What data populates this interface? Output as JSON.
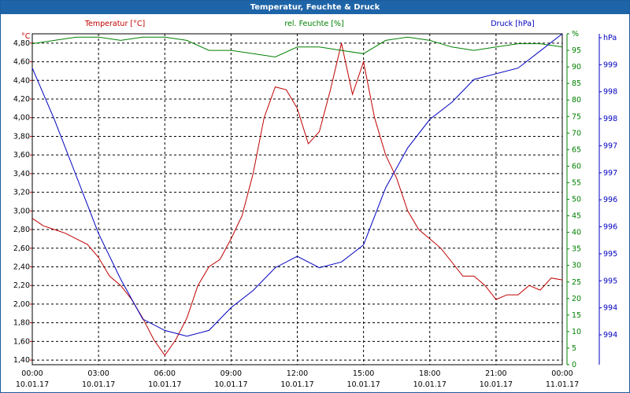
{
  "window_title": "Temperatur, Feuchte & Druck",
  "colors": {
    "temperature": "#c00000",
    "humidity": "#008000",
    "pressure": "#0000c0",
    "grid": "#000000",
    "titlebar": "#1e64a8"
  },
  "chart_data": {
    "type": "line",
    "title": "Temperatur, Feuchte & Druck",
    "grid": true,
    "x_tick_labels": [
      {
        "time": "00:00",
        "date": "10.01.17"
      },
      {
        "time": "03:00",
        "date": "10.01.17"
      },
      {
        "time": "06:00",
        "date": "10.01.17"
      },
      {
        "time": "09:00",
        "date": "10.01.17"
      },
      {
        "time": "12:00",
        "date": "10.01.17"
      },
      {
        "time": "15:00",
        "date": "10.01.17"
      },
      {
        "time": "18:00",
        "date": "10.01.17"
      },
      {
        "time": "21:00",
        "date": "10.01.17"
      },
      {
        "time": "00:00",
        "date": "11.01.17"
      }
    ],
    "xlim": [
      "10.01.17 00:00",
      "11.01.17 00:00"
    ],
    "axes": {
      "left": {
        "label": "Temperatur [°C]",
        "unit": "°C",
        "ylim": [
          1.35,
          4.9
        ],
        "ticks": [
          "1,40",
          "1,60",
          "1,80",
          "2,00",
          "2,20",
          "2,40",
          "2,60",
          "2,80",
          "3,00",
          "3,20",
          "3,40",
          "3,60",
          "3,80",
          "4,00",
          "4,20",
          "4,40",
          "4,60",
          "4,80"
        ]
      },
      "humidity": {
        "label": "rel. Feuchte [%]",
        "unit": "%",
        "ylim": [
          0,
          100
        ],
        "ticks": [
          "0",
          "5",
          "10",
          "15",
          "20",
          "25",
          "30",
          "35",
          "40",
          "45",
          "50",
          "55",
          "60",
          "65",
          "70",
          "75",
          "80",
          "85",
          "90",
          "95",
          "%"
        ]
      },
      "pressure": {
        "label": "Druck [hPa]",
        "unit": "hPa",
        "ylim": [
          993.5,
          999.3
        ],
        "ticks": [
          "994",
          "994",
          "995",
          "995",
          "996",
          "996",
          "997",
          "997",
          "998",
          "998",
          "999",
          "hPa"
        ]
      }
    },
    "series": [
      {
        "name": "Temperatur [°C]",
        "axis": "left",
        "x": [
          "10.01.17 00:00",
          "10.01.17 00:30",
          "10.01.17 01:00",
          "10.01.17 01:30",
          "10.01.17 02:00",
          "10.01.17 02:30",
          "10.01.17 03:00",
          "10.01.17 03:30",
          "10.01.17 04:00",
          "10.01.17 04:30",
          "10.01.17 05:00",
          "10.01.17 05:30",
          "10.01.17 06:00",
          "10.01.17 06:30",
          "10.01.17 07:00",
          "10.01.17 07:30",
          "10.01.17 08:00",
          "10.01.17 08:30",
          "10.01.17 09:00",
          "10.01.17 09:30",
          "10.01.17 10:00",
          "10.01.17 10:30",
          "10.01.17 11:00",
          "10.01.17 11:30",
          "10.01.17 12:00",
          "10.01.17 12:30",
          "10.01.17 13:00",
          "10.01.17 13:30",
          "10.01.17 14:00",
          "10.01.17 14:30",
          "10.01.17 15:00",
          "10.01.17 15:30",
          "10.01.17 16:00",
          "10.01.17 16:30",
          "10.01.17 17:00",
          "10.01.17 17:30",
          "10.01.17 18:00",
          "10.01.17 18:30",
          "10.01.17 19:00",
          "10.01.17 19:30",
          "10.01.17 20:00",
          "10.01.17 20:30",
          "10.01.17 21:00",
          "10.01.17 21:30",
          "10.01.17 22:00",
          "10.01.17 22:30",
          "10.01.17 23:00",
          "10.01.17 23:30",
          "11.01.17 00:00"
        ],
        "values": [
          2.92,
          2.84,
          2.8,
          2.76,
          2.7,
          2.64,
          2.5,
          2.3,
          2.2,
          2.05,
          1.85,
          1.62,
          1.45,
          1.62,
          1.85,
          2.2,
          2.4,
          2.48,
          2.7,
          2.95,
          3.4,
          4.0,
          4.33,
          4.3,
          4.1,
          3.72,
          3.85,
          4.3,
          4.8,
          4.25,
          4.6,
          4.0,
          3.6,
          3.35,
          3.0,
          2.8,
          2.7,
          2.6,
          2.45,
          2.3,
          2.3,
          2.2,
          2.05,
          2.1,
          2.1,
          2.2,
          2.15,
          2.28,
          2.26
        ]
      },
      {
        "name": "rel. Feuchte [%]",
        "axis": "humidity",
        "x": [
          "10.01.17 00:00",
          "10.01.17 01:00",
          "10.01.17 02:00",
          "10.01.17 03:00",
          "10.01.17 04:00",
          "10.01.17 05:00",
          "10.01.17 06:00",
          "10.01.17 07:00",
          "10.01.17 08:00",
          "10.01.17 09:00",
          "10.01.17 10:00",
          "10.01.17 11:00",
          "10.01.17 12:00",
          "10.01.17 13:00",
          "10.01.17 14:00",
          "10.01.17 15:00",
          "10.01.17 16:00",
          "10.01.17 17:00",
          "10.01.17 18:00",
          "10.01.17 19:00",
          "10.01.17 20:00",
          "10.01.17 21:00",
          "10.01.17 22:00",
          "10.01.17 23:00",
          "11.01.17 00:00"
        ],
        "values": [
          97,
          98,
          99,
          99,
          98,
          99,
          99,
          98,
          95,
          95,
          94,
          93,
          96,
          96,
          95,
          94,
          98,
          99,
          98,
          96,
          95,
          96,
          97,
          97,
          96
        ]
      },
      {
        "name": "Druck [hPa]",
        "axis": "pressure",
        "x": [
          "10.01.17 00:00",
          "10.01.17 01:00",
          "10.01.17 02:00",
          "10.01.17 03:00",
          "10.01.17 04:00",
          "10.01.17 05:00",
          "10.01.17 06:00",
          "10.01.17 07:00",
          "10.01.17 08:00",
          "10.01.17 09:00",
          "10.01.17 10:00",
          "10.01.17 11:00",
          "10.01.17 12:00",
          "10.01.17 13:00",
          "10.01.17 14:00",
          "10.01.17 15:00",
          "10.01.17 16:00",
          "10.01.17 17:00",
          "10.01.17 18:00",
          "10.01.17 19:00",
          "10.01.17 20:00",
          "10.01.17 21:00",
          "10.01.17 22:00",
          "10.01.17 23:00",
          "11.01.17 00:00"
        ],
        "values": [
          998.7,
          997.8,
          996.8,
          995.8,
          995.0,
          994.3,
          994.1,
          994.0,
          994.1,
          994.5,
          994.8,
          995.2,
          995.4,
          995.2,
          995.3,
          995.6,
          996.6,
          997.3,
          997.8,
          998.1,
          998.5,
          998.6,
          998.7,
          999.0,
          999.3
        ]
      }
    ]
  }
}
